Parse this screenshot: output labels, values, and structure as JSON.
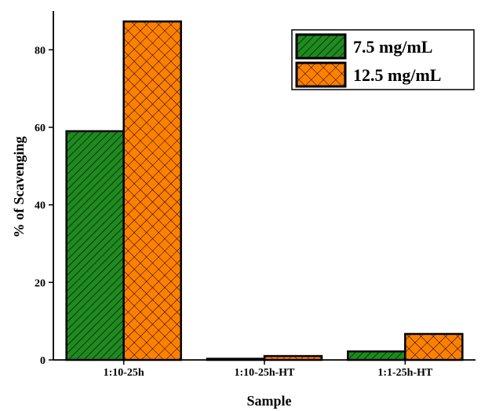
{
  "chart_data": {
    "type": "bar",
    "categories": [
      "1:10-25h",
      "1:10-25h-HT",
      "1:1-25h-HT"
    ],
    "series": [
      {
        "name": "7.5 mg/mL",
        "values": [
          59,
          0.3,
          2.2
        ],
        "color": "#1f8a1f",
        "pattern": "diagonal-hatch"
      },
      {
        "name": "12.5 mg/mL",
        "values": [
          87.3,
          1.0,
          6.7
        ],
        "color": "#ff8000",
        "pattern": "crosshatch"
      }
    ],
    "xlabel": "Sample",
    "ylabel": "% of Scavenging",
    "ylim": [
      0,
      90
    ],
    "yticks": [
      0,
      20,
      40,
      60,
      80
    ],
    "grid": false,
    "legend_position": "top-right"
  }
}
